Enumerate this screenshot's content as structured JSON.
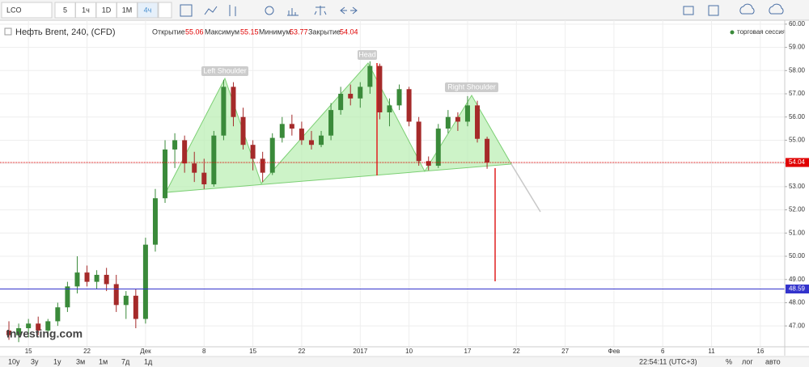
{
  "toolbar": {
    "symbol": "LCO",
    "intervals": [
      "5",
      "1ч",
      "1D",
      "1M",
      "4ч"
    ]
  },
  "header": {
    "open_label": "Открытие",
    "high_label": "Максимум",
    "low_label": "Минимум",
    "close_label": "Закрытие",
    "session": "торговая сессия"
  },
  "footer": {
    "ranges": [
      "10y",
      "3y",
      "1y",
      "3м",
      "1м",
      "7д",
      "1д"
    ],
    "time": "22:54:11 (UTC+3)",
    "percent": "%",
    "log": "лог",
    "auto": "авто"
  },
  "watermark": "Investing.com",
  "chart_data": {
    "type": "candlestick",
    "title": "Нефть Brent, 240, (CFD)",
    "annotations": [
      "Left Shoulder",
      "Head",
      "Right Shoulder"
    ],
    "up_color": "#3a8a3a",
    "down_color": "#a52a2a",
    "grid": true,
    "categories": [
      null,
      null,
      "15",
      null,
      null,
      null,
      null,
      null,
      "22",
      null,
      null,
      null,
      null,
      null,
      "Дек",
      null,
      null,
      null,
      null,
      null,
      "8",
      null,
      null,
      null,
      null,
      "15",
      null,
      null,
      null,
      null,
      "22",
      null,
      null,
      null,
      null,
      null,
      "2017",
      null,
      null,
      null,
      null,
      "10",
      null,
      null,
      null,
      null,
      null,
      "17",
      null,
      null,
      null,
      null,
      "22",
      null,
      null,
      null,
      null,
      "27",
      null,
      null,
      null,
      null,
      "Фев",
      null,
      null,
      null,
      null,
      "6",
      null,
      null,
      null,
      null,
      "11",
      null,
      null,
      null,
      null,
      "16",
      null,
      null
    ],
    "open": [
      46.8,
      46.6,
      46.9,
      47.1,
      46.8,
      47.2,
      47.8,
      48.7,
      49.3,
      48.9,
      49.2,
      48.8,
      47.9,
      48.3,
      47.3,
      50.5,
      52.5,
      54.6,
      55.0,
      54.0,
      53.6,
      53.1,
      55.2,
      57.3,
      56.0,
      54.8,
      54.2,
      53.6,
      55.1,
      55.7,
      55.5,
      55.0,
      54.8,
      55.2,
      56.3,
      57.0,
      56.8,
      57.3,
      58.2,
      56.2,
      56.5,
      57.2,
      55.8,
      54.1,
      53.9,
      55.5,
      56.0,
      55.8,
      56.5,
      55.06,
      null,
      null,
      null,
      null,
      null,
      null,
      null,
      null,
      null,
      null,
      null,
      null,
      null,
      null,
      null,
      null,
      null,
      null,
      null,
      null,
      null,
      null,
      null,
      null,
      null,
      null,
      null,
      null,
      null,
      null
    ],
    "high": [
      47.2,
      47.1,
      47.3,
      47.4,
      47.3,
      48.0,
      48.9,
      50.0,
      49.6,
      49.4,
      49.5,
      49.2,
      48.5,
      48.6,
      50.8,
      52.9,
      55.0,
      55.3,
      55.2,
      54.5,
      54.2,
      55.4,
      57.6,
      57.5,
      56.4,
      55.0,
      54.5,
      55.3,
      56.0,
      56.1,
      55.8,
      55.4,
      55.4,
      56.6,
      57.3,
      57.4,
      57.5,
      58.4,
      58.3,
      56.8,
      57.4,
      57.3,
      56.0,
      54.3,
      55.7,
      56.3,
      56.2,
      56.9,
      56.7,
      55.15,
      null,
      null,
      null,
      null,
      null,
      null,
      null,
      null,
      null,
      null,
      null,
      null,
      null,
      null,
      null,
      null,
      null,
      null,
      null,
      null,
      null,
      null,
      null,
      null,
      null,
      null,
      null,
      null,
      null,
      null
    ],
    "low": [
      46.4,
      46.3,
      46.5,
      46.6,
      46.6,
      47.0,
      47.6,
      48.4,
      48.7,
      48.6,
      48.5,
      47.6,
      47.3,
      46.9,
      47.1,
      50.2,
      52.3,
      53.8,
      53.6,
      53.2,
      52.9,
      53.0,
      55.0,
      55.6,
      54.6,
      53.7,
      53.2,
      53.5,
      54.9,
      55.2,
      54.8,
      54.6,
      54.7,
      55.0,
      56.1,
      56.5,
      56.4,
      57.0,
      55.9,
      55.6,
      56.3,
      55.6,
      53.9,
      53.7,
      53.8,
      55.3,
      55.4,
      55.6,
      54.9,
      53.77,
      null,
      null,
      null,
      null,
      null,
      null,
      null,
      null,
      null,
      null,
      null,
      null,
      null,
      null,
      null,
      null,
      null,
      null,
      null,
      null,
      null,
      null,
      null,
      null,
      null,
      null,
      null,
      null,
      null,
      null
    ],
    "close": [
      46.6,
      46.9,
      47.1,
      46.8,
      47.2,
      47.8,
      48.7,
      49.3,
      48.9,
      49.2,
      48.8,
      47.9,
      48.3,
      47.3,
      50.5,
      52.5,
      54.6,
      55.0,
      54.0,
      53.6,
      53.1,
      55.2,
      57.3,
      56.0,
      54.8,
      54.2,
      53.6,
      55.1,
      55.7,
      55.5,
      55.0,
      54.8,
      55.2,
      56.3,
      57.0,
      56.8,
      57.3,
      58.2,
      56.2,
      56.5,
      57.2,
      55.8,
      54.1,
      53.9,
      55.5,
      56.0,
      55.8,
      56.5,
      55.06,
      54.04,
      null,
      null,
      null,
      null,
      null,
      null,
      null,
      null,
      null,
      null,
      null,
      null,
      null,
      null,
      null,
      null,
      null,
      null,
      null,
      null,
      null,
      null,
      null,
      null,
      null,
      null,
      null,
      null,
      null,
      null
    ],
    "hlines": [
      {
        "value": 48.59,
        "color": "#3333cc"
      }
    ],
    "last_color": "#e00000",
    "ylim": [
      46.1,
      60.1
    ],
    "yticks": [
      {
        "value": 47,
        "label": "47.00"
      },
      {
        "value": 48,
        "label": "48.00"
      },
      {
        "value": 49,
        "label": "49.00"
      },
      {
        "value": 50,
        "label": "50.00"
      },
      {
        "value": 51,
        "label": "51.00"
      },
      {
        "value": 52,
        "label": "52.00"
      },
      {
        "value": 53,
        "label": "53.00"
      },
      {
        "value": 54,
        "label": "54.00"
      },
      {
        "value": 55,
        "label": "55.00"
      },
      {
        "value": 56,
        "label": "56.00"
      },
      {
        "value": 57,
        "label": "57.00"
      },
      {
        "value": 58,
        "label": "58.00"
      },
      {
        "value": 59,
        "label": "59.00"
      },
      {
        "value": 60,
        "label": "60.00"
      }
    ]
  }
}
